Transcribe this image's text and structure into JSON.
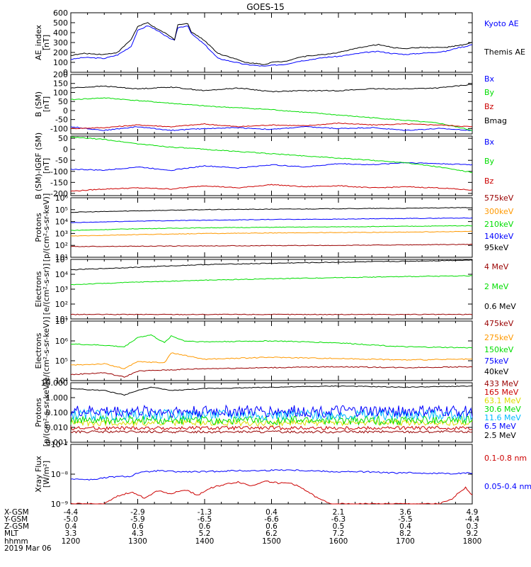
{
  "title": "GOES-15",
  "colors": {
    "black": "#000000",
    "blue": "#0000ff",
    "green": "#00dd00",
    "red": "#cc0000",
    "darkred": "#990000",
    "orange": "#ff9900",
    "yellow": "#dddd00",
    "cyan": "#00bbff",
    "purple": "#bb00bb"
  },
  "chart_data": [
    {
      "type": "line",
      "ylabel": [
        "AE_index",
        "[nT]"
      ],
      "yscale": "linear",
      "ylim": [
        0,
        600
      ],
      "yticks": [
        "0",
        "100",
        "200",
        "300",
        "400",
        "500",
        "600"
      ],
      "xlim": [
        0,
        6
      ],
      "series": [
        {
          "name": "Kyoto AE",
          "color": "blue",
          "x": [
            0,
            0.2,
            0.5,
            0.7,
            0.9,
            1.0,
            1.15,
            1.3,
            1.4,
            1.55,
            1.6,
            1.75,
            1.8,
            2.0,
            2.2,
            2.4,
            2.6,
            2.9,
            3.0,
            3.2,
            3.4,
            3.6,
            3.8,
            4.0,
            4.2,
            4.4,
            4.6,
            4.8,
            5.0,
            5.2,
            5.4,
            5.6,
            5.8,
            5.9,
            6.0
          ],
          "y": [
            130,
            150,
            140,
            175,
            260,
            420,
            470,
            420,
            370,
            320,
            450,
            470,
            390,
            280,
            140,
            110,
            80,
            60,
            70,
            80,
            110,
            130,
            150,
            160,
            180,
            200,
            210,
            190,
            180,
            190,
            200,
            210,
            250,
            260,
            280
          ]
        },
        {
          "name": "Themis AE",
          "color": "black",
          "x": [
            0,
            0.2,
            0.5,
            0.7,
            0.9,
            1.0,
            1.15,
            1.3,
            1.4,
            1.55,
            1.6,
            1.75,
            1.8,
            2.0,
            2.2,
            2.4,
            2.6,
            2.9,
            3.0,
            3.2,
            3.4,
            3.6,
            3.8,
            4.0,
            4.2,
            4.4,
            4.6,
            4.8,
            5.0,
            5.2,
            5.4,
            5.6,
            5.8,
            5.9,
            6.0
          ],
          "y": [
            170,
            190,
            180,
            200,
            330,
            460,
            500,
            430,
            400,
            330,
            480,
            490,
            410,
            320,
            190,
            150,
            100,
            80,
            100,
            110,
            150,
            170,
            180,
            200,
            230,
            260,
            280,
            250,
            240,
            250,
            250,
            250,
            270,
            280,
            300
          ]
        }
      ]
    },
    {
      "type": "line",
      "ylabel": [
        "B (SM)",
        "[nT]"
      ],
      "yscale": "linear",
      "ylim": [
        -130,
        200
      ],
      "yticks": [
        "-100",
        "-50",
        "0",
        "50",
        "100",
        "150",
        "200"
      ],
      "xlim": [
        0,
        6
      ],
      "series": [
        {
          "name": "Bx",
          "color": "blue",
          "x": [
            0,
            0.5,
            1,
            1.5,
            2,
            2.5,
            3,
            3.5,
            4,
            4.5,
            5,
            5.5,
            6
          ],
          "y": [
            -90,
            -110,
            -90,
            -110,
            -100,
            -95,
            -105,
            -90,
            -100,
            -95,
            -110,
            -100,
            -110
          ]
        },
        {
          "name": "By",
          "color": "green",
          "x": [
            0,
            0.5,
            1,
            1.5,
            2,
            2.5,
            3,
            3.5,
            4,
            4.5,
            5,
            5.5,
            6
          ],
          "y": [
            60,
            70,
            55,
            40,
            25,
            15,
            5,
            -10,
            -25,
            -40,
            -55,
            -70,
            -110
          ]
        },
        {
          "name": "Bz",
          "color": "red",
          "x": [
            0,
            0.5,
            1,
            1.5,
            2,
            2.5,
            3,
            3.5,
            4,
            4.5,
            5,
            5.5,
            6
          ],
          "y": [
            -100,
            -95,
            -80,
            -90,
            -75,
            -90,
            -80,
            -85,
            -70,
            -80,
            -75,
            -80,
            -90
          ]
        },
        {
          "name": "Bmag",
          "color": "black",
          "x": [
            0,
            0.5,
            1,
            1.5,
            2,
            2.5,
            3,
            3.5,
            4,
            4.5,
            5,
            5.5,
            6
          ],
          "y": [
            125,
            135,
            120,
            130,
            110,
            125,
            105,
            110,
            110,
            120,
            120,
            125,
            145
          ]
        }
      ]
    },
    {
      "type": "line",
      "ylabel": [
        "B (SM)-IGRF (SM)",
        "[nT]"
      ],
      "yscale": "linear",
      "ylim": [
        -210,
        60
      ],
      "yticks": [
        "-200",
        "-150",
        "-100",
        "-50",
        "0",
        "50"
      ],
      "xlim": [
        0,
        6
      ],
      "series": [
        {
          "name": "Bx",
          "color": "blue",
          "x": [
            0,
            0.5,
            1,
            1.5,
            2,
            2.5,
            3,
            3.5,
            4,
            4.5,
            5,
            5.5,
            6
          ],
          "y": [
            -90,
            -95,
            -80,
            -95,
            -75,
            -85,
            -70,
            -80,
            -65,
            -70,
            -60,
            -65,
            -70
          ]
        },
        {
          "name": "By",
          "color": "green",
          "x": [
            0,
            0.5,
            1,
            1.5,
            2,
            2.5,
            3,
            3.5,
            4,
            4.5,
            5,
            5.5,
            6
          ],
          "y": [
            55,
            45,
            25,
            10,
            0,
            -10,
            -20,
            -30,
            -40,
            -50,
            -60,
            -80,
            -105
          ]
        },
        {
          "name": "Bz",
          "color": "red",
          "x": [
            0,
            0.5,
            1,
            1.5,
            2,
            2.5,
            3,
            3.5,
            4,
            4.5,
            5,
            5.5,
            6
          ],
          "y": [
            -190,
            -180,
            -175,
            -180,
            -165,
            -175,
            -160,
            -170,
            -165,
            -175,
            -170,
            -175,
            -185
          ]
        }
      ]
    },
    {
      "type": "line",
      "ylabel": [
        "Protons",
        "[p/(cm²-s-sr-keV)]"
      ],
      "yscale": "log",
      "ylim": [
        10,
        1000000
      ],
      "yticks": [
        "10¹",
        "10²",
        "10³",
        "10⁴",
        "10⁵",
        "10⁶"
      ],
      "xlim": [
        0,
        6
      ],
      "series": [
        {
          "name": "575keV",
          "color": "darkred",
          "x": [
            0,
            1,
            2,
            3,
            4,
            5,
            6
          ],
          "y": [
            80,
            85,
            90,
            95,
            100,
            110,
            120
          ]
        },
        {
          "name": "300keV",
          "color": "orange",
          "x": [
            0,
            1,
            2,
            3,
            4,
            5,
            6
          ],
          "y": [
            600,
            800,
            1000,
            1100,
            1200,
            1300,
            1500
          ]
        },
        {
          "name": "210keV",
          "color": "green",
          "x": [
            0,
            1,
            2,
            3,
            4,
            5,
            6
          ],
          "y": [
            1800,
            2500,
            3000,
            3300,
            3600,
            4000,
            4500
          ]
        },
        {
          "name": "140keV",
          "color": "blue",
          "x": [
            0,
            1,
            2,
            3,
            4,
            5,
            6
          ],
          "y": [
            8000,
            11000,
            13000,
            15000,
            16000,
            18000,
            20000
          ]
        },
        {
          "name": "95keV",
          "color": "black",
          "x": [
            0,
            1,
            2,
            3,
            4,
            5,
            6
          ],
          "y": [
            60000,
            80000,
            100000,
            110000,
            120000,
            130000,
            150000
          ]
        }
      ]
    },
    {
      "type": "line",
      "ylabel": [
        "Electrons",
        "[e/(cm²-s-sr)]"
      ],
      "yscale": "log",
      "ylim": [
        10,
        100000
      ],
      "yticks": [
        "10¹",
        "10²",
        "10³",
        "10⁴",
        "10⁵"
      ],
      "xlim": [
        0,
        6
      ],
      "series": [
        {
          "name": "4 MeV",
          "color": "darkred",
          "x": [
            0,
            1,
            2,
            3,
            4,
            5,
            6
          ],
          "y": [
            20,
            20,
            20,
            20,
            20,
            20,
            20
          ]
        },
        {
          "name": "2 MeV",
          "color": "green",
          "x": [
            0,
            1,
            2,
            3,
            4,
            5,
            6
          ],
          "y": [
            2000,
            3000,
            4000,
            5000,
            6000,
            7000,
            8000
          ]
        },
        {
          "name": "0.6 MeV",
          "color": "black",
          "x": [
            0,
            1,
            2,
            3,
            4,
            5,
            6
          ],
          "y": [
            20000,
            30000,
            45000,
            55000,
            65000,
            75000,
            90000
          ]
        }
      ]
    },
    {
      "type": "line",
      "ylabel": [
        "Electrons",
        "[e/(cm²-s-sr-keV)]"
      ],
      "yscale": "log",
      "ylim": [
        10000,
        10000000
      ],
      "yticks": [
        "10⁴",
        "10⁵",
        "10⁶",
        "10⁷"
      ],
      "xlim": [
        0,
        6
      ],
      "series": [
        {
          "name": "475keV",
          "color": "darkred",
          "x": [
            0,
            0.5,
            0.8,
            1.0,
            1.5,
            2,
            3,
            4,
            5,
            6
          ],
          "y": [
            20000,
            25000,
            15000,
            30000,
            35000,
            40000,
            45000,
            50000,
            45000,
            50000
          ]
        },
        {
          "name": "275keV",
          "color": "orange",
          "x": [
            0,
            0.5,
            0.8,
            1.0,
            1.4,
            1.5,
            2,
            3,
            4,
            5,
            6
          ],
          "y": [
            60000,
            70000,
            40000,
            90000,
            80000,
            250000,
            120000,
            150000,
            130000,
            110000,
            120000
          ]
        },
        {
          "name": "150keV",
          "color": "green",
          "x": [
            0,
            0.5,
            0.8,
            1.0,
            1.2,
            1.4,
            1.5,
            1.7,
            2,
            3,
            4,
            5,
            6
          ],
          "y": [
            700000,
            600000,
            500000,
            1500000,
            2000000,
            800000,
            1800000,
            1000000,
            900000,
            1000000,
            800000,
            500000,
            450000
          ]
        }
      ]
    },
    {
      "type": "line",
      "ylabel": [
        "Protons",
        "[p/(cm²-s-sr-keV)]"
      ],
      "yscale": "log",
      "ylim": [
        0.001,
        10
      ],
      "yticks": [
        "0.001",
        "0.010",
        "0.100",
        "1.000",
        "10.000"
      ],
      "xlim": [
        0,
        6
      ],
      "series": [
        {
          "name": "433 MeV",
          "color": "darkred",
          "level": 0.005,
          "noise": 0.08
        },
        {
          "name": "165 MeV",
          "color": "red",
          "level": 0.009,
          "noise": 0.12
        },
        {
          "name": "63.1 MeV",
          "color": "yellow",
          "level": 0.02,
          "noise": 0.2
        },
        {
          "name": "30.6 MeV",
          "color": "green",
          "level": 0.03,
          "noise": 0.3
        },
        {
          "name": "11.6 MeV",
          "color": "cyan",
          "level": 0.07,
          "noise": 0.35
        },
        {
          "name": "6.5 MeV",
          "color": "blue",
          "level": 0.12,
          "noise": 0.4
        },
        {
          "name": "2.5 MeV",
          "color": "black",
          "x": [
            0,
            0.5,
            0.8,
            1.0,
            1.2,
            1.5,
            2,
            3,
            4,
            5,
            6
          ],
          "y": [
            4,
            3,
            1.5,
            3,
            5,
            3,
            4,
            5,
            6,
            5,
            6
          ]
        }
      ]
    },
    {
      "type": "line",
      "ylabel": [
        "Xray Flux",
        "[W/m²]"
      ],
      "yscale": "log",
      "ylim": [
        1e-09,
        1e-07
      ],
      "yticks": [
        "10⁻⁹",
        "10⁻⁸",
        "10⁻⁷"
      ],
      "xlim": [
        0,
        6
      ],
      "series": [
        {
          "name": "0.1-0.8 nm",
          "color": "red",
          "x": [
            0,
            0.5,
            0.7,
            0.9,
            1.1,
            1.3,
            1.5,
            1.7,
            1.9,
            2.1,
            2.3,
            2.5,
            2.7,
            2.9,
            3.1,
            3.3,
            3.5,
            3.7,
            3.9,
            4.1,
            4.3,
            4.5,
            4.7,
            4.9,
            5.1,
            5.3,
            5.5,
            5.7,
            5.8,
            5.9,
            6.0
          ],
          "y": [
            1e-09,
            1e-09,
            1.8e-09,
            2.5e-09,
            1.6e-09,
            2.8e-09,
            2.2e-09,
            3e-09,
            2e-09,
            3.5e-09,
            4.5e-09,
            5.5e-09,
            4e-09,
            6e-09,
            5e-09,
            5e-09,
            3e-09,
            1.5e-09,
            1e-09,
            1e-09,
            1e-09,
            1e-09,
            1e-09,
            1e-09,
            1e-09,
            1e-09,
            1e-09,
            1.4e-09,
            2.5e-09,
            3.5e-09,
            2e-09
          ]
        },
        {
          "name": "0.05-0.4 nm",
          "color": "blue",
          "x": [
            0,
            0.3,
            0.6,
            0.9,
            1.0,
            1.3,
            1.6,
            2.0,
            2.4,
            2.8,
            3.2,
            3.6,
            4.0,
            4.4,
            4.8,
            5.2,
            5.6,
            6.0
          ],
          "y": [
            7e-09,
            6.5e-09,
            8e-09,
            8.5e-09,
            1.1e-08,
            1.3e-08,
            1.2e-08,
            1.2e-08,
            1.3e-08,
            1.3e-08,
            1.4e-08,
            1.3e-08,
            1.2e-08,
            1.2e-08,
            1.1e-08,
            1.1e-08,
            1.05e-08,
            1.1e-08
          ]
        }
      ]
    }
  ],
  "xaxis": {
    "tick_positions": [
      0,
      1,
      2,
      3,
      4,
      5,
      6
    ],
    "rows": [
      {
        "label": "X-GSM",
        "values": [
          "-4.4",
          "-2.9",
          "-1.3",
          "0.4",
          "2.1",
          "3.6",
          "4.9"
        ]
      },
      {
        "label": "Y-GSM",
        "values": [
          "-5.0",
          "-5.9",
          "-6.5",
          "-6.6",
          "-6.3",
          "-5.5",
          "-4.4"
        ]
      },
      {
        "label": "Z-GSM",
        "values": [
          "0.4",
          "0.6",
          "0.6",
          "0.6",
          "0.5",
          "0.4",
          "0.3"
        ]
      },
      {
        "label": "MLT",
        "values": [
          "3.3",
          "4.3",
          "5.2",
          "6.2",
          "7.2",
          "8.2",
          "9.2"
        ]
      },
      {
        "label": "hhmm",
        "values": [
          "1200",
          "1300",
          "1400",
          "1500",
          "1600",
          "1700",
          "1800"
        ]
      }
    ],
    "date": "2019 Mar 06"
  }
}
